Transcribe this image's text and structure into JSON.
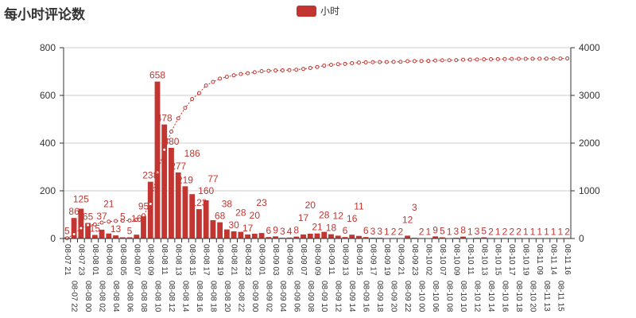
{
  "chart_data": {
    "type": "bar",
    "title": "每小时评论数",
    "legend": [
      "小时"
    ],
    "legend_placement": "top-center",
    "color": "#c23531",
    "grid": true,
    "ylim": [
      0,
      800
    ],
    "yticks": [
      0,
      200,
      400,
      600,
      800
    ],
    "y2lim": [
      0,
      4000
    ],
    "y2ticks": [
      0,
      1000,
      2000,
      3000,
      4000
    ],
    "categories": [
      "08-07 21",
      "08-07 22",
      "08-07 23",
      "08-08 00",
      "08-08 01",
      "08-08 02",
      "08-08 03",
      "08-08 04",
      "08-08 05",
      "08-08 06",
      "08-08 07",
      "08-08 08",
      "08-08 09",
      "08-08 10",
      "08-08 11",
      "08-08 12",
      "08-08 13",
      "08-08 14",
      "08-08 15",
      "08-08 16",
      "08-08 17",
      "08-08 18",
      "08-08 19",
      "08-08 20",
      "08-08 21",
      "08-08 22",
      "08-08 23",
      "08-09 00",
      "08-09 01",
      "08-09 02",
      "08-09 03",
      "08-09 04",
      "08-09 05",
      "08-09 06",
      "08-09 07",
      "08-09 08",
      "08-09 09",
      "08-09 10",
      "08-09 11",
      "08-09 12",
      "08-09 13",
      "08-09 14",
      "08-09 15",
      "08-09 16",
      "08-09 17",
      "08-09 18",
      "08-09 19",
      "08-09 20",
      "08-09 21",
      "08-09 22",
      "08-09 23",
      "08-10 00",
      "08-10 02",
      "08-10 06",
      "08-10 07",
      "08-10 08",
      "08-10 09",
      "08-10 10",
      "08-10 11",
      "08-10 12",
      "08-10 13",
      "08-10 14",
      "08-10 15",
      "08-10 16",
      "08-10 17",
      "08-10 18",
      "08-10 19",
      "08-10 20",
      "08-11 09",
      "08-11 13",
      "08-11 14",
      "08-11 15",
      "08-11 16"
    ],
    "series": [
      {
        "name": "小时",
        "type": "bar",
        "values": [
          5,
          86,
          125,
          65,
          15,
          37,
          21,
          13,
          5,
          5,
          16,
          95,
          238,
          658,
          478,
          380,
          277,
          219,
          186,
          123,
          160,
          77,
          68,
          38,
          30,
          28,
          17,
          20,
          23,
          6,
          9,
          3,
          4,
          8,
          17,
          20,
          21,
          28,
          18,
          12,
          6,
          16,
          11,
          6,
          3,
          3,
          1,
          2,
          2,
          12,
          3,
          2,
          1,
          9,
          5,
          1,
          3,
          8,
          1,
          3,
          5,
          2,
          1,
          2,
          2,
          2,
          1,
          1,
          1,
          1,
          1,
          1,
          2
        ]
      },
      {
        "type": "line",
        "axis": "right",
        "style": "dotted",
        "cumulative": true
      }
    ]
  }
}
